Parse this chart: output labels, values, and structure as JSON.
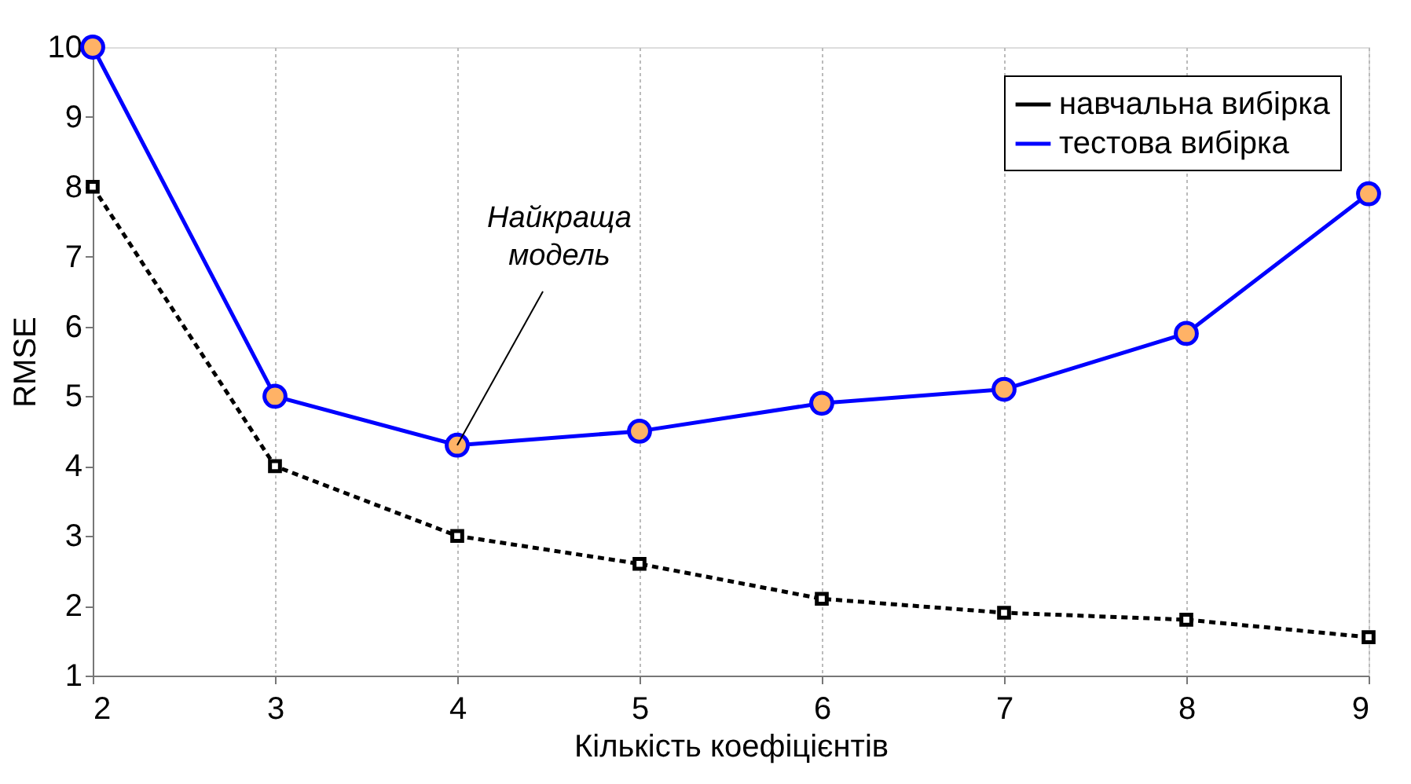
{
  "chart_data": {
    "type": "line",
    "xlabel": "Кількість коефіцієнтів",
    "ylabel": "RMSE",
    "x": [
      2,
      3,
      4,
      5,
      6,
      7,
      8,
      9
    ],
    "series": [
      {
        "name": "навчальна вибірка",
        "color": "#000000",
        "marker": "square",
        "line_style": "dashed",
        "values": [
          8,
          4,
          3,
          2.6,
          2.1,
          1.9,
          1.8,
          1.55
        ]
      },
      {
        "name": "тестова вибірка",
        "color": "#0000ff",
        "marker": "circle",
        "line_style": "solid",
        "values": [
          10,
          5,
          4.3,
          4.5,
          4.9,
          5.1,
          5.9,
          7.9
        ]
      }
    ],
    "xlim": [
      2,
      9
    ],
    "xticks": [
      2,
      3,
      4,
      5,
      6,
      7,
      8,
      9
    ],
    "ylim": [
      1,
      10
    ],
    "yticks": [
      1,
      2,
      3,
      4,
      5,
      6,
      7,
      8,
      9,
      10
    ],
    "grid": "x",
    "legend": "top right",
    "annotations": [
      {
        "text": "Найкраща\nмодель",
        "x": 4,
        "y": 4.3
      }
    ]
  }
}
